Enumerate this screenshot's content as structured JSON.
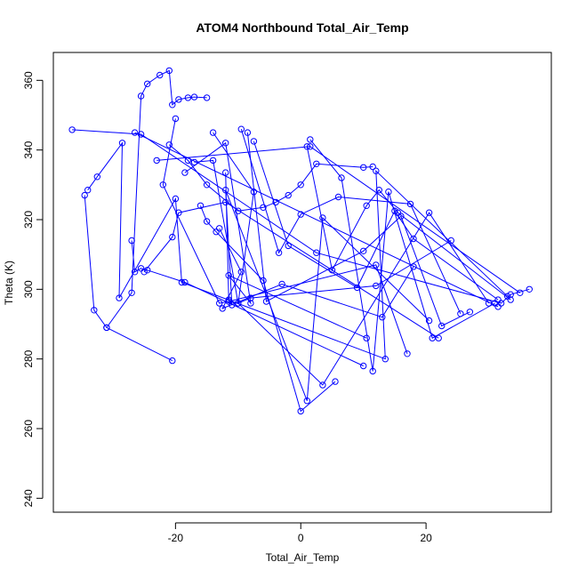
{
  "chart_data": {
    "type": "line",
    "title": "ATOM4 Northbound Total_Air_Temp",
    "xlabel": "Total_Air_Temp",
    "ylabel": "Theta (K)",
    "xlim": [
      -39.5,
      40
    ],
    "ylim": [
      236,
      368
    ],
    "x_ticks": [
      -20,
      0,
      20
    ],
    "x_tick_labels": [
      "-20",
      "0",
      "20"
    ],
    "y_ticks": [
      240,
      260,
      280,
      300,
      320,
      340,
      360
    ],
    "y_tick_labels": [
      "240",
      "260",
      "280",
      "300",
      "320",
      "340",
      "360"
    ],
    "grid": false,
    "legend": "none",
    "series_color": "#0000ff",
    "marker": "open-circle",
    "series": [
      {
        "x": [
          -36.5,
          -25.5,
          2.5,
          32.0,
          33.5,
          36.5
        ],
        "y": [
          345.8,
          344.5,
          310.5,
          296.0,
          298.5,
          300.0
        ]
      },
      {
        "x": [
          -34.0,
          -32.5,
          -28.5,
          -29.0,
          -20.0,
          -19.0,
          13.5,
          12.0,
          33.0
        ],
        "y": [
          328.5,
          332.3,
          342.0,
          297.5,
          326.0,
          302.0,
          280.0,
          334.0,
          298.0
        ]
      },
      {
        "x": [
          -34.5,
          -33.0,
          -31.0,
          -20.5
        ],
        "y": [
          327.0,
          294.0,
          289.0,
          279.5
        ]
      },
      {
        "x": [
          -31.0,
          -27.0,
          -25.5,
          -24.5,
          -22.5,
          -21.0,
          -20.5,
          -19.5,
          -18.0,
          -17.0,
          -15.0
        ],
        "y": [
          289.0,
          299.0,
          355.5,
          359.0,
          361.5,
          362.8,
          353.0,
          354.5,
          355.0,
          355.2,
          355.0
        ]
      },
      {
        "x": [
          -27.0,
          -26.5,
          -25.5,
          -24.5,
          -18.5,
          10.0
        ],
        "y": [
          314.0,
          305.0,
          306.0,
          305.5,
          302.0,
          278.0
        ]
      },
      {
        "x": [
          -26.5,
          31.5
        ],
        "y": [
          345.0,
          295.0
        ]
      },
      {
        "x": [
          -25.0,
          -20.5,
          -19.5,
          -12.0,
          22.0
        ],
        "y": [
          305.0,
          315.0,
          322.0,
          325.0,
          286.0
        ]
      },
      {
        "x": [
          -23.0,
          1.5,
          35.0
        ],
        "y": [
          337.0,
          341.0,
          299.0
        ]
      },
      {
        "x": [
          -21.0,
          -18.0,
          -15.0,
          -10.0,
          -6.0,
          -4.0,
          -2.0,
          0.0,
          2.5,
          10.0,
          11.5
        ],
        "y": [
          341.5,
          337.0,
          330.0,
          322.5,
          323.5,
          325.0,
          327.0,
          330.0,
          336.0,
          335.0,
          335.2
        ]
      },
      {
        "x": [
          -20.0,
          -22.0,
          -13.0,
          -11.5,
          12.0,
          17.0
        ],
        "y": [
          349.0,
          330.0,
          296.0,
          296.5,
          307.0,
          281.5
        ]
      },
      {
        "x": [
          -18.5,
          -12.0,
          -8.0,
          -11.5,
          10.5
        ],
        "y": [
          333.5,
          342.0,
          296.0,
          304.0,
          286.0
        ]
      },
      {
        "x": [
          -17.0,
          -14.0,
          -10.0,
          -8.0,
          12.0,
          24.0
        ],
        "y": [
          336.5,
          337.0,
          296.0,
          297.5,
          301.0,
          314.0
        ]
      },
      {
        "x": [
          -16.0,
          -15.0,
          -13.5,
          -6.0,
          0.0,
          5.5
        ],
        "y": [
          324.0,
          319.5,
          316.5,
          302.5,
          265.0,
          273.5
        ]
      },
      {
        "x": [
          -14.0,
          -7.5,
          -10.0,
          3.5,
          20.5,
          30.0
        ],
        "y": [
          345.0,
          328.0,
          296.0,
          272.5,
          322.0,
          296.0
        ]
      },
      {
        "x": [
          -13.0,
          -9.5,
          -12.5,
          -3.0,
          13.0,
          18.0
        ],
        "y": [
          317.5,
          305.0,
          294.5,
          301.5,
          292.0,
          306.5
        ]
      },
      {
        "x": [
          -12.0,
          -11.5,
          -11.0,
          -12.0,
          1.0,
          3.5,
          20.5
        ],
        "y": [
          333.5,
          297.0,
          295.5,
          328.5,
          268.0,
          320.5,
          291.0
        ]
      },
      {
        "x": [
          -9.5,
          -3.5,
          0.0,
          6.0,
          17.5,
          25.5
        ],
        "y": [
          346.0,
          310.5,
          321.5,
          326.5,
          324.5,
          293.0
        ]
      },
      {
        "x": [
          -8.5,
          -5.5,
          10.0,
          16.0,
          22.5,
          27.0
        ],
        "y": [
          345.0,
          296.5,
          311.0,
          321.0,
          289.5,
          293.5
        ]
      },
      {
        "x": [
          -7.5,
          -2.0,
          9.0,
          15.0,
          18.0,
          31.5
        ],
        "y": [
          342.5,
          312.5,
          300.5,
          322.5,
          314.5,
          297.0
        ]
      },
      {
        "x": [
          1.5,
          6.5,
          11.5,
          14.0,
          21.0,
          31.0
        ],
        "y": [
          343.0,
          332.0,
          276.5,
          328.0,
          286.0,
          296.0
        ]
      },
      {
        "x": [
          1.0,
          5.0,
          10.5,
          12.5,
          15.5,
          33.5
        ],
        "y": [
          341.0,
          305.5,
          324.0,
          328.5,
          322.0,
          297.0
        ]
      }
    ]
  }
}
